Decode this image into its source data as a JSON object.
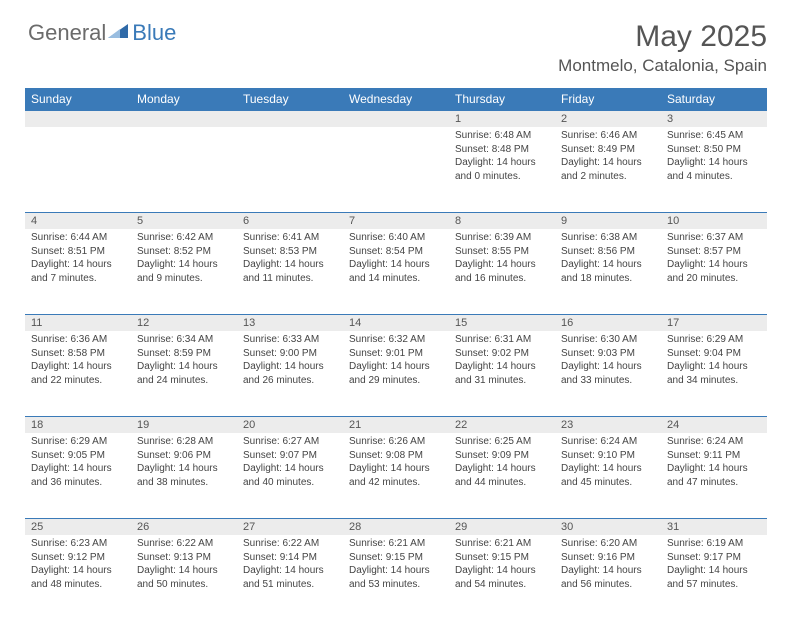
{
  "logo": {
    "text1": "General",
    "text2": "Blue"
  },
  "title": "May 2025",
  "location": "Montmelo, Catalonia, Spain",
  "colors": {
    "header_bg": "#3a7ab8",
    "header_text": "#ffffff",
    "daynum_bg": "#ececec",
    "body_text": "#444444"
  },
  "day_headers": [
    "Sunday",
    "Monday",
    "Tuesday",
    "Wednesday",
    "Thursday",
    "Friday",
    "Saturday"
  ],
  "weeks": [
    [
      {
        "num": "",
        "sunrise": "",
        "sunset": "",
        "daylight": ""
      },
      {
        "num": "",
        "sunrise": "",
        "sunset": "",
        "daylight": ""
      },
      {
        "num": "",
        "sunrise": "",
        "sunset": "",
        "daylight": ""
      },
      {
        "num": "",
        "sunrise": "",
        "sunset": "",
        "daylight": ""
      },
      {
        "num": "1",
        "sunrise": "Sunrise: 6:48 AM",
        "sunset": "Sunset: 8:48 PM",
        "daylight": "Daylight: 14 hours and 0 minutes."
      },
      {
        "num": "2",
        "sunrise": "Sunrise: 6:46 AM",
        "sunset": "Sunset: 8:49 PM",
        "daylight": "Daylight: 14 hours and 2 minutes."
      },
      {
        "num": "3",
        "sunrise": "Sunrise: 6:45 AM",
        "sunset": "Sunset: 8:50 PM",
        "daylight": "Daylight: 14 hours and 4 minutes."
      }
    ],
    [
      {
        "num": "4",
        "sunrise": "Sunrise: 6:44 AM",
        "sunset": "Sunset: 8:51 PM",
        "daylight": "Daylight: 14 hours and 7 minutes."
      },
      {
        "num": "5",
        "sunrise": "Sunrise: 6:42 AM",
        "sunset": "Sunset: 8:52 PM",
        "daylight": "Daylight: 14 hours and 9 minutes."
      },
      {
        "num": "6",
        "sunrise": "Sunrise: 6:41 AM",
        "sunset": "Sunset: 8:53 PM",
        "daylight": "Daylight: 14 hours and 11 minutes."
      },
      {
        "num": "7",
        "sunrise": "Sunrise: 6:40 AM",
        "sunset": "Sunset: 8:54 PM",
        "daylight": "Daylight: 14 hours and 14 minutes."
      },
      {
        "num": "8",
        "sunrise": "Sunrise: 6:39 AM",
        "sunset": "Sunset: 8:55 PM",
        "daylight": "Daylight: 14 hours and 16 minutes."
      },
      {
        "num": "9",
        "sunrise": "Sunrise: 6:38 AM",
        "sunset": "Sunset: 8:56 PM",
        "daylight": "Daylight: 14 hours and 18 minutes."
      },
      {
        "num": "10",
        "sunrise": "Sunrise: 6:37 AM",
        "sunset": "Sunset: 8:57 PM",
        "daylight": "Daylight: 14 hours and 20 minutes."
      }
    ],
    [
      {
        "num": "11",
        "sunrise": "Sunrise: 6:36 AM",
        "sunset": "Sunset: 8:58 PM",
        "daylight": "Daylight: 14 hours and 22 minutes."
      },
      {
        "num": "12",
        "sunrise": "Sunrise: 6:34 AM",
        "sunset": "Sunset: 8:59 PM",
        "daylight": "Daylight: 14 hours and 24 minutes."
      },
      {
        "num": "13",
        "sunrise": "Sunrise: 6:33 AM",
        "sunset": "Sunset: 9:00 PM",
        "daylight": "Daylight: 14 hours and 26 minutes."
      },
      {
        "num": "14",
        "sunrise": "Sunrise: 6:32 AM",
        "sunset": "Sunset: 9:01 PM",
        "daylight": "Daylight: 14 hours and 29 minutes."
      },
      {
        "num": "15",
        "sunrise": "Sunrise: 6:31 AM",
        "sunset": "Sunset: 9:02 PM",
        "daylight": "Daylight: 14 hours and 31 minutes."
      },
      {
        "num": "16",
        "sunrise": "Sunrise: 6:30 AM",
        "sunset": "Sunset: 9:03 PM",
        "daylight": "Daylight: 14 hours and 33 minutes."
      },
      {
        "num": "17",
        "sunrise": "Sunrise: 6:29 AM",
        "sunset": "Sunset: 9:04 PM",
        "daylight": "Daylight: 14 hours and 34 minutes."
      }
    ],
    [
      {
        "num": "18",
        "sunrise": "Sunrise: 6:29 AM",
        "sunset": "Sunset: 9:05 PM",
        "daylight": "Daylight: 14 hours and 36 minutes."
      },
      {
        "num": "19",
        "sunrise": "Sunrise: 6:28 AM",
        "sunset": "Sunset: 9:06 PM",
        "daylight": "Daylight: 14 hours and 38 minutes."
      },
      {
        "num": "20",
        "sunrise": "Sunrise: 6:27 AM",
        "sunset": "Sunset: 9:07 PM",
        "daylight": "Daylight: 14 hours and 40 minutes."
      },
      {
        "num": "21",
        "sunrise": "Sunrise: 6:26 AM",
        "sunset": "Sunset: 9:08 PM",
        "daylight": "Daylight: 14 hours and 42 minutes."
      },
      {
        "num": "22",
        "sunrise": "Sunrise: 6:25 AM",
        "sunset": "Sunset: 9:09 PM",
        "daylight": "Daylight: 14 hours and 44 minutes."
      },
      {
        "num": "23",
        "sunrise": "Sunrise: 6:24 AM",
        "sunset": "Sunset: 9:10 PM",
        "daylight": "Daylight: 14 hours and 45 minutes."
      },
      {
        "num": "24",
        "sunrise": "Sunrise: 6:24 AM",
        "sunset": "Sunset: 9:11 PM",
        "daylight": "Daylight: 14 hours and 47 minutes."
      }
    ],
    [
      {
        "num": "25",
        "sunrise": "Sunrise: 6:23 AM",
        "sunset": "Sunset: 9:12 PM",
        "daylight": "Daylight: 14 hours and 48 minutes."
      },
      {
        "num": "26",
        "sunrise": "Sunrise: 6:22 AM",
        "sunset": "Sunset: 9:13 PM",
        "daylight": "Daylight: 14 hours and 50 minutes."
      },
      {
        "num": "27",
        "sunrise": "Sunrise: 6:22 AM",
        "sunset": "Sunset: 9:14 PM",
        "daylight": "Daylight: 14 hours and 51 minutes."
      },
      {
        "num": "28",
        "sunrise": "Sunrise: 6:21 AM",
        "sunset": "Sunset: 9:15 PM",
        "daylight": "Daylight: 14 hours and 53 minutes."
      },
      {
        "num": "29",
        "sunrise": "Sunrise: 6:21 AM",
        "sunset": "Sunset: 9:15 PM",
        "daylight": "Daylight: 14 hours and 54 minutes."
      },
      {
        "num": "30",
        "sunrise": "Sunrise: 6:20 AM",
        "sunset": "Sunset: 9:16 PM",
        "daylight": "Daylight: 14 hours and 56 minutes."
      },
      {
        "num": "31",
        "sunrise": "Sunrise: 6:19 AM",
        "sunset": "Sunset: 9:17 PM",
        "daylight": "Daylight: 14 hours and 57 minutes."
      }
    ]
  ]
}
